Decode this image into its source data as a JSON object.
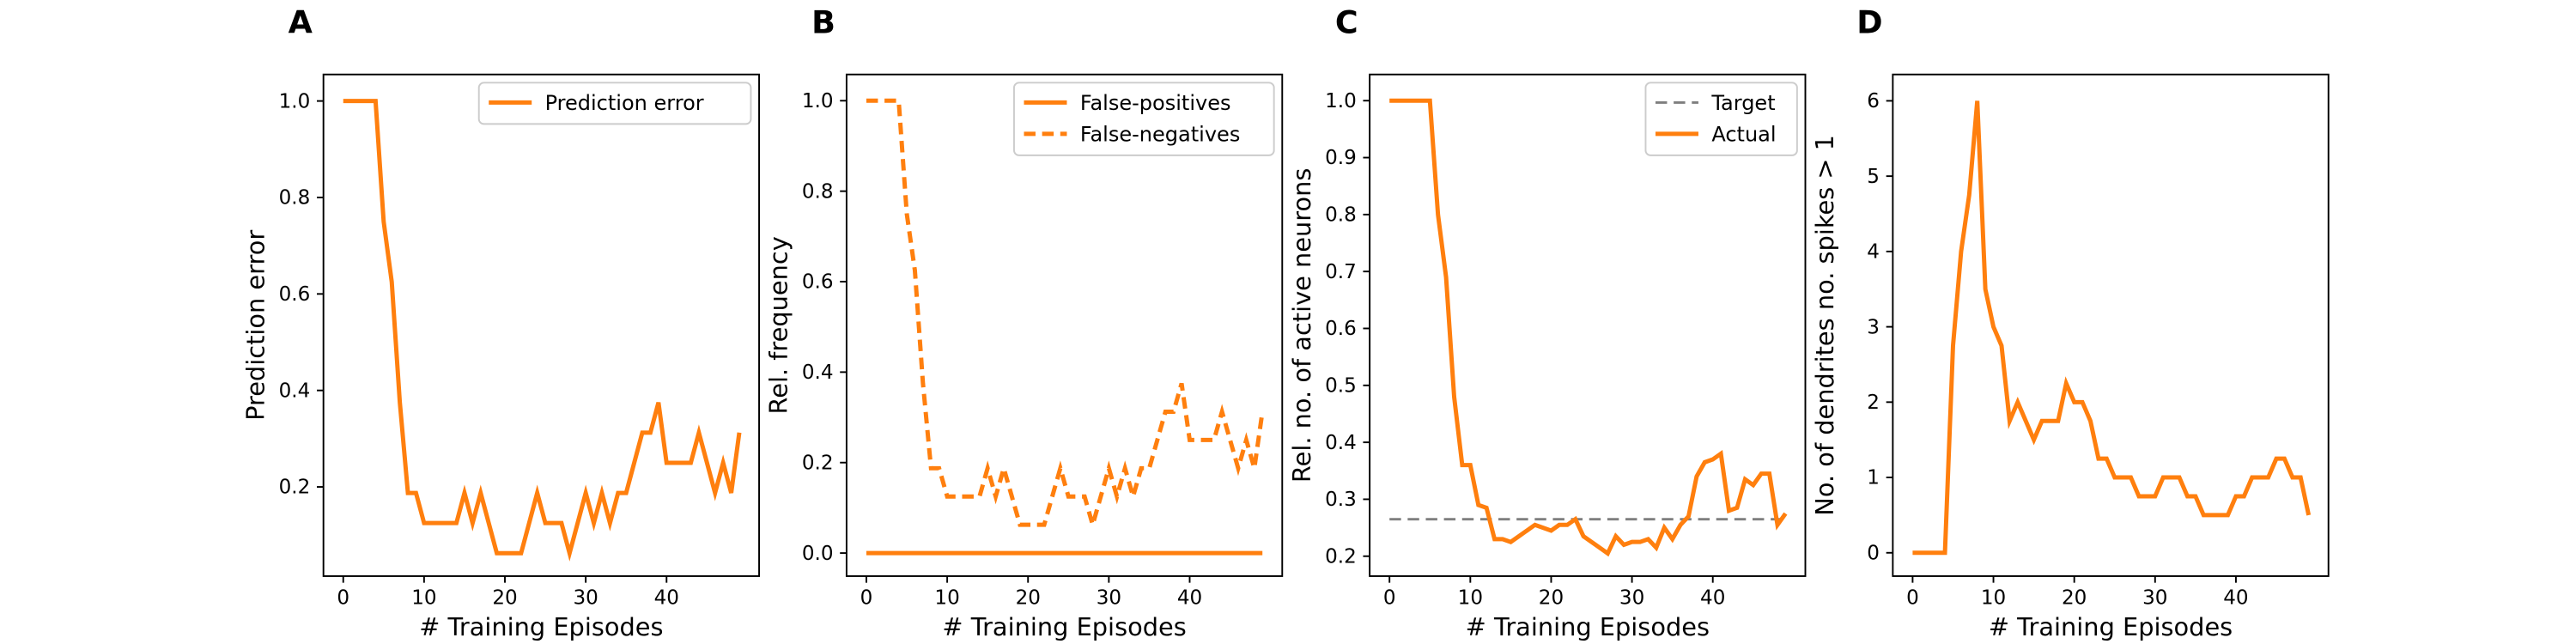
{
  "chart_data": [
    {
      "type": "line",
      "panel": "A",
      "xlabel": "# Training Episodes",
      "ylabel": "Prediction error",
      "x": [
        0,
        1,
        2,
        3,
        4,
        5,
        6,
        7,
        8,
        9,
        10,
        11,
        12,
        13,
        14,
        15,
        16,
        17,
        18,
        19,
        20,
        21,
        22,
        23,
        24,
        25,
        26,
        27,
        28,
        29,
        30,
        31,
        32,
        33,
        34,
        35,
        36,
        37,
        38,
        39,
        40,
        41,
        42,
        43,
        44,
        45,
        46,
        47,
        48,
        49
      ],
      "series": [
        {
          "name": "Prediction error",
          "color": "#ff7f0e",
          "linestyle": "solid",
          "values": [
            1,
            1,
            1,
            1,
            1,
            0.75,
            0.625,
            0.375,
            0.1875,
            0.1875,
            0.125,
            0.125,
            0.125,
            0.125,
            0.125,
            0.1875,
            0.125,
            0.1875,
            0.125,
            0.0625,
            0.0625,
            0.0625,
            0.0625,
            0.125,
            0.1875,
            0.125,
            0.125,
            0.125,
            0.0625,
            0.125,
            0.1875,
            0.125,
            0.1875,
            0.125,
            0.1875,
            0.1875,
            0.25,
            0.3125,
            0.3125,
            0.375,
            0.25,
            0.25,
            0.25,
            0.25,
            0.3125,
            0.25,
            0.1875,
            0.25,
            0.1875,
            0.3125
          ]
        }
      ],
      "xlim": [
        -2.45,
        51.45
      ],
      "xticks": [
        0,
        10,
        20,
        30,
        40
      ],
      "ylim": [
        0.015,
        1.055
      ],
      "yticks": [
        0.2,
        0.4,
        0.6,
        0.8,
        {
          "value": 1,
          "label": "1.0"
        }
      ],
      "legend": "upper right"
    },
    {
      "type": "line",
      "panel": "B",
      "xlabel": "# Training Episodes",
      "ylabel": "Rel. frequency",
      "x": [
        0,
        1,
        2,
        3,
        4,
        5,
        6,
        7,
        8,
        9,
        10,
        11,
        12,
        13,
        14,
        15,
        16,
        17,
        18,
        19,
        20,
        21,
        22,
        23,
        24,
        25,
        26,
        27,
        28,
        29,
        30,
        31,
        32,
        33,
        34,
        35,
        36,
        37,
        38,
        39,
        40,
        41,
        42,
        43,
        44,
        45,
        46,
        47,
        48,
        49
      ],
      "series": [
        {
          "name": "False-positives",
          "color": "#ff7f0e",
          "linestyle": "solid",
          "values": [
            0,
            0,
            0,
            0,
            0,
            0,
            0,
            0,
            0,
            0,
            0,
            0,
            0,
            0,
            0,
            0,
            0,
            0,
            0,
            0,
            0,
            0,
            0,
            0,
            0,
            0,
            0,
            0,
            0,
            0,
            0,
            0,
            0,
            0,
            0,
            0,
            0,
            0,
            0,
            0,
            0,
            0,
            0,
            0,
            0,
            0,
            0,
            0,
            0,
            0
          ]
        },
        {
          "name": "False-negatives",
          "color": "#ff7f0e",
          "linestyle": "dashed",
          "values": [
            1,
            1,
            1,
            1,
            1,
            0.75,
            0.625,
            0.375,
            0.1875,
            0.1875,
            0.125,
            0.125,
            0.125,
            0.125,
            0.125,
            0.1875,
            0.125,
            0.1875,
            0.125,
            0.0625,
            0.0625,
            0.0625,
            0.0625,
            0.125,
            0.1875,
            0.125,
            0.125,
            0.125,
            0.0625,
            0.125,
            0.1875,
            0.125,
            0.1875,
            0.125,
            0.1875,
            0.1875,
            0.25,
            0.3125,
            0.3125,
            0.375,
            0.25,
            0.25,
            0.25,
            0.25,
            0.3125,
            0.25,
            0.1875,
            0.25,
            0.1875,
            0.3125
          ]
        }
      ],
      "xlim": [
        -2.45,
        51.45
      ],
      "xticks": [
        0,
        10,
        20,
        30,
        40
      ],
      "ylim": [
        -0.051,
        1.058
      ],
      "yticks": [
        {
          "value": 0,
          "label": "0.0"
        },
        0.2,
        0.4,
        0.6,
        0.8,
        {
          "value": 1,
          "label": "1.0"
        }
      ],
      "legend": "upper right"
    },
    {
      "type": "line",
      "panel": "C",
      "xlabel": "# Training Episodes",
      "ylabel": "Rel. no. of active neurons",
      "x": [
        0,
        1,
        2,
        3,
        4,
        5,
        6,
        7,
        8,
        9,
        10,
        11,
        12,
        13,
        14,
        15,
        16,
        17,
        18,
        19,
        20,
        21,
        22,
        23,
        24,
        25,
        26,
        27,
        28,
        29,
        30,
        31,
        32,
        33,
        34,
        35,
        36,
        37,
        38,
        39,
        40,
        41,
        42,
        43,
        44,
        45,
        46,
        47,
        48,
        49
      ],
      "series": [
        {
          "name": "Target",
          "color": "#7f7f7f",
          "linestyle": "dashed",
          "values": [
            0.265,
            0.265,
            0.265,
            0.265,
            0.265,
            0.265,
            0.265,
            0.265,
            0.265,
            0.265,
            0.265,
            0.265,
            0.265,
            0.265,
            0.265,
            0.265,
            0.265,
            0.265,
            0.265,
            0.265,
            0.265,
            0.265,
            0.265,
            0.265,
            0.265,
            0.265,
            0.265,
            0.265,
            0.265,
            0.265,
            0.265,
            0.265,
            0.265,
            0.265,
            0.265,
            0.265,
            0.265,
            0.265,
            0.265,
            0.265,
            0.265,
            0.265,
            0.265,
            0.265,
            0.265,
            0.265,
            0.265,
            0.265,
            0.265,
            0.265
          ]
        },
        {
          "name": "Actual",
          "color": "#ff7f0e",
          "linestyle": "solid",
          "values": [
            1,
            1,
            1,
            1,
            1,
            1,
            0.8,
            0.69,
            0.48,
            0.36,
            0.36,
            0.29,
            0.285,
            0.23,
            0.23,
            0.225,
            0.235,
            0.245,
            0.255,
            0.25,
            0.245,
            0.255,
            0.255,
            0.265,
            0.235,
            0.225,
            0.215,
            0.205,
            0.235,
            0.22,
            0.225,
            0.225,
            0.23,
            0.215,
            0.25,
            0.23,
            0.255,
            0.27,
            0.34,
            0.365,
            0.37,
            0.38,
            0.28,
            0.285,
            0.335,
            0.325,
            0.345,
            0.345,
            0.255,
            0.275
          ]
        }
      ],
      "xlim": [
        -2.45,
        51.45
      ],
      "xticks": [
        0,
        10,
        20,
        30,
        40
      ],
      "ylim": [
        0.165,
        1.046
      ],
      "yticks": [
        0.2,
        0.3,
        0.4,
        0.5,
        0.6,
        0.7,
        0.8,
        0.9,
        {
          "value": 1,
          "label": "1.0"
        }
      ],
      "legend": "upper right"
    },
    {
      "type": "line",
      "panel": "D",
      "xlabel": "# Training Episodes",
      "ylabel": "No. of dendrites no. spikes > 1",
      "x": [
        0,
        1,
        2,
        3,
        4,
        5,
        6,
        7,
        8,
        9,
        10,
        11,
        12,
        13,
        14,
        15,
        16,
        17,
        18,
        19,
        20,
        21,
        22,
        23,
        24,
        25,
        26,
        27,
        28,
        29,
        30,
        31,
        32,
        33,
        34,
        35,
        36,
        37,
        38,
        39,
        40,
        41,
        42,
        43,
        44,
        45,
        46,
        47,
        48,
        49
      ],
      "series": [
        {
          "color": "#ff7f0e",
          "linestyle": "solid",
          "values": [
            0,
            0,
            0,
            0,
            0,
            2.75,
            4,
            4.75,
            6,
            3.5,
            3,
            2.75,
            1.75,
            2,
            1.75,
            1.5,
            1.75,
            1.75,
            1.75,
            2.25,
            2,
            2,
            1.75,
            1.25,
            1.25,
            1,
            1,
            1,
            0.75,
            0.75,
            0.75,
            1,
            1,
            1,
            0.75,
            0.75,
            0.5,
            0.5,
            0.5,
            0.5,
            0.75,
            0.75,
            1,
            1,
            1,
            1.25,
            1.25,
            1,
            1,
            0.5
          ]
        }
      ],
      "xlim": [
        -2.45,
        51.45
      ],
      "xticks": [
        0,
        10,
        20,
        30,
        40
      ],
      "ylim": [
        -0.31,
        6.35
      ],
      "yticks": [
        0,
        1,
        2,
        3,
        4,
        5,
        6
      ]
    }
  ]
}
